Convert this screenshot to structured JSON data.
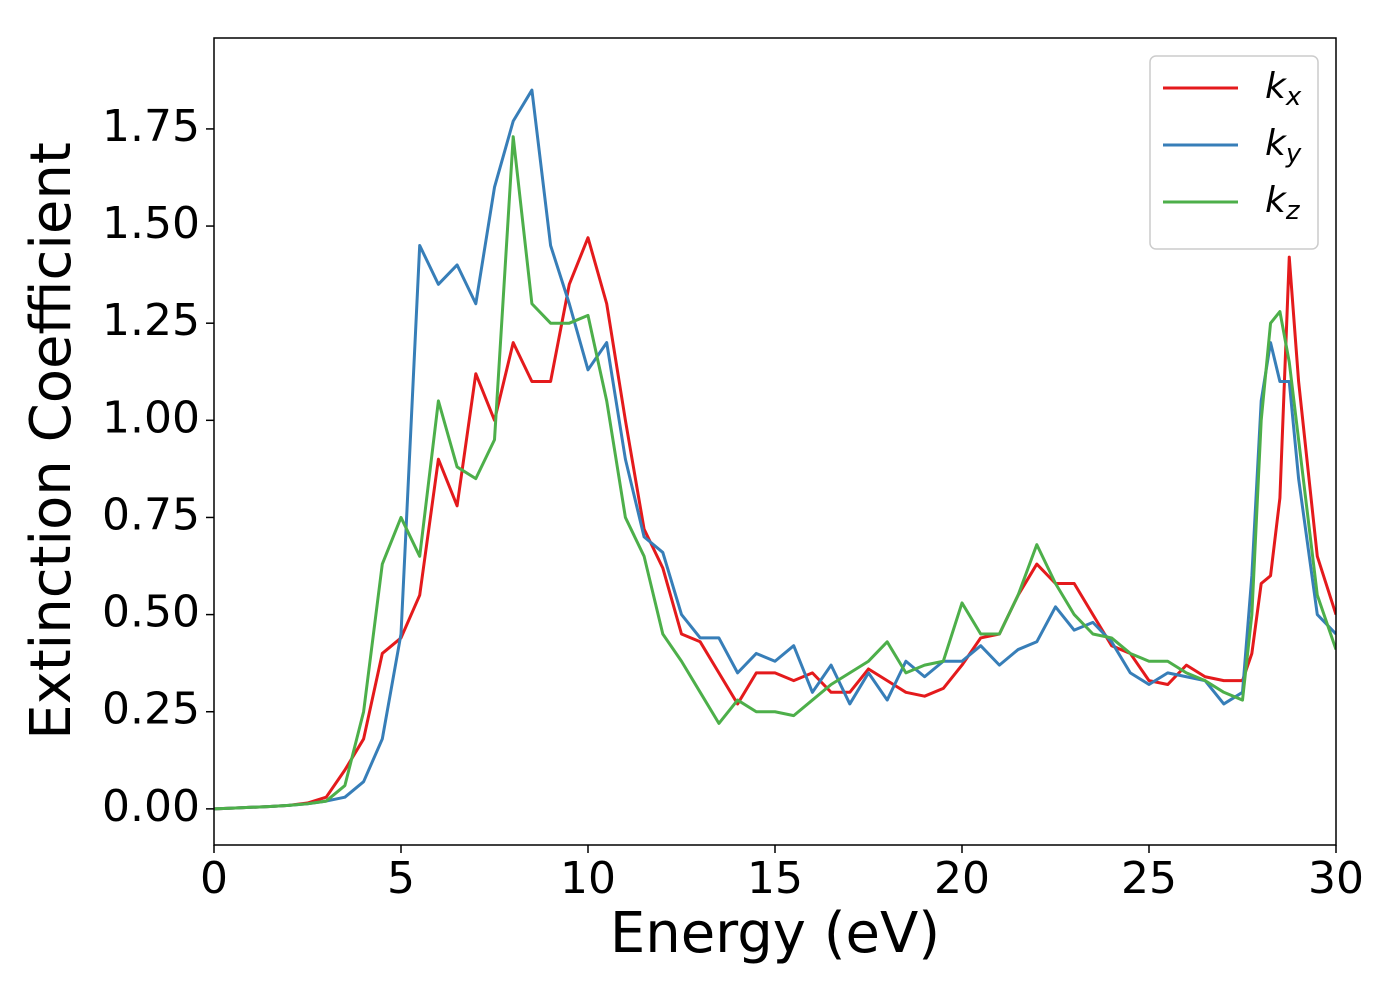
{
  "chart_data": {
    "type": "line",
    "xlabel": "Energy (eV)",
    "ylabel": "Extinction Coefficient",
    "x": [
      0,
      0.5,
      1,
      1.5,
      2,
      2.5,
      3,
      3.5,
      4,
      4.5,
      5,
      5.5,
      6,
      6.5,
      7,
      7.5,
      8,
      8.5,
      9,
      9.5,
      10,
      10.5,
      11,
      11.5,
      12,
      12.5,
      13,
      13.5,
      14,
      14.5,
      15,
      15.5,
      16,
      16.5,
      17,
      17.5,
      18,
      18.5,
      19,
      19.5,
      20,
      20.5,
      21,
      21.5,
      22,
      22.5,
      23,
      23.5,
      24,
      24.5,
      25,
      25.5,
      26,
      26.5,
      27,
      27.5,
      27.75,
      28,
      28.25,
      28.5,
      28.75,
      29,
      29.5,
      30
    ],
    "series": [
      {
        "name": "kx",
        "color": "#e41a1c",
        "values": [
          0,
          0.002,
          0.004,
          0.006,
          0.009,
          0.015,
          0.03,
          0.1,
          0.18,
          0.4,
          0.44,
          0.55,
          0.9,
          0.78,
          1.12,
          1.0,
          1.2,
          1.1,
          1.1,
          1.35,
          1.47,
          1.3,
          1.0,
          0.72,
          0.62,
          0.45,
          0.43,
          0.35,
          0.27,
          0.35,
          0.35,
          0.33,
          0.35,
          0.3,
          0.3,
          0.36,
          0.33,
          0.3,
          0.29,
          0.31,
          0.37,
          0.44,
          0.45,
          0.55,
          0.63,
          0.58,
          0.58,
          0.5,
          0.42,
          0.4,
          0.33,
          0.32,
          0.37,
          0.34,
          0.33,
          0.33,
          0.4,
          0.58,
          0.6,
          0.8,
          1.42,
          1.1,
          0.65,
          0.5
        ]
      },
      {
        "name": "ky",
        "color": "#377eb8",
        "values": [
          0,
          0.002,
          0.004,
          0.006,
          0.009,
          0.013,
          0.02,
          0.03,
          0.07,
          0.18,
          0.45,
          1.45,
          1.35,
          1.4,
          1.3,
          1.6,
          1.77,
          1.85,
          1.45,
          1.3,
          1.13,
          1.2,
          0.9,
          0.7,
          0.66,
          0.5,
          0.44,
          0.44,
          0.35,
          0.4,
          0.38,
          0.42,
          0.3,
          0.37,
          0.27,
          0.35,
          0.28,
          0.38,
          0.34,
          0.38,
          0.38,
          0.42,
          0.37,
          0.41,
          0.43,
          0.52,
          0.46,
          0.48,
          0.43,
          0.35,
          0.32,
          0.35,
          0.34,
          0.33,
          0.27,
          0.3,
          0.6,
          1.05,
          1.2,
          1.1,
          1.1,
          0.85,
          0.5,
          0.45
        ]
      },
      {
        "name": "kz",
        "color": "#4daf4a",
        "values": [
          0,
          0.002,
          0.004,
          0.006,
          0.009,
          0.013,
          0.02,
          0.06,
          0.25,
          0.63,
          0.75,
          0.65,
          1.05,
          0.88,
          0.85,
          0.95,
          1.73,
          1.3,
          1.25,
          1.25,
          1.27,
          1.05,
          0.75,
          0.65,
          0.45,
          0.38,
          0.3,
          0.22,
          0.28,
          0.25,
          0.25,
          0.24,
          0.28,
          0.32,
          0.35,
          0.38,
          0.43,
          0.35,
          0.37,
          0.38,
          0.53,
          0.45,
          0.45,
          0.55,
          0.68,
          0.58,
          0.5,
          0.45,
          0.44,
          0.4,
          0.38,
          0.38,
          0.35,
          0.33,
          0.3,
          0.28,
          0.5,
          1.0,
          1.25,
          1.28,
          1.15,
          0.95,
          0.55,
          0.41
        ]
      }
    ],
    "xlim": [
      0,
      30
    ],
    "xticks": [
      0,
      5,
      10,
      15,
      20,
      25,
      30
    ],
    "ylim": [
      -0.093,
      1.984
    ],
    "yticks": [
      {
        "value": 0,
        "label": "0.00"
      },
      {
        "value": 0.25,
        "label": "0.25"
      },
      {
        "value": 0.5,
        "label": "0.50"
      },
      {
        "value": 0.75,
        "label": "0.75"
      },
      {
        "value": 1,
        "label": "1.00"
      },
      {
        "value": 1.25,
        "label": "1.25"
      },
      {
        "value": 1.5,
        "label": "1.50"
      },
      {
        "value": 1.75,
        "label": "1.75"
      }
    ],
    "grid": false,
    "legend": "upper right"
  }
}
